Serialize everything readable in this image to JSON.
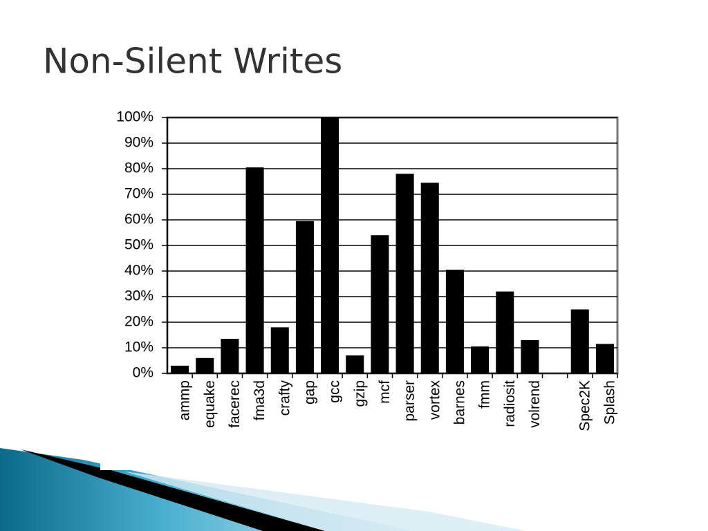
{
  "chart_data": {
    "type": "bar",
    "title": "Non-Silent Writes",
    "categories": [
      "ammp",
      "equake",
      "facerec",
      "fma3d",
      "crafty",
      "gap",
      "gcc",
      "gzip",
      "mcf",
      "parser",
      "vortex",
      "barnes",
      "fmm",
      "radiosit",
      "volrend",
      null,
      "Spec2K",
      "Splash"
    ],
    "values": [
      3,
      6,
      13.5,
      80.5,
      18,
      59.5,
      100,
      7,
      54,
      78,
      74.5,
      40.5,
      10.5,
      32,
      13,
      null,
      25,
      11.5
    ],
    "color": "#000000",
    "ylim": [
      0,
      100
    ],
    "yticks": [
      {
        "value": 0,
        "label": "0%"
      },
      {
        "value": 10,
        "label": "10%"
      },
      {
        "value": 20,
        "label": "20%"
      },
      {
        "value": 30,
        "label": "30%"
      },
      {
        "value": 40,
        "label": "40%"
      },
      {
        "value": 50,
        "label": "50%"
      },
      {
        "value": 60,
        "label": "60%"
      },
      {
        "value": 70,
        "label": "70%"
      },
      {
        "value": 80,
        "label": "80%"
      },
      {
        "value": 90,
        "label": "90%"
      },
      {
        "value": 100,
        "label": "100%"
      }
    ],
    "grid": true
  }
}
